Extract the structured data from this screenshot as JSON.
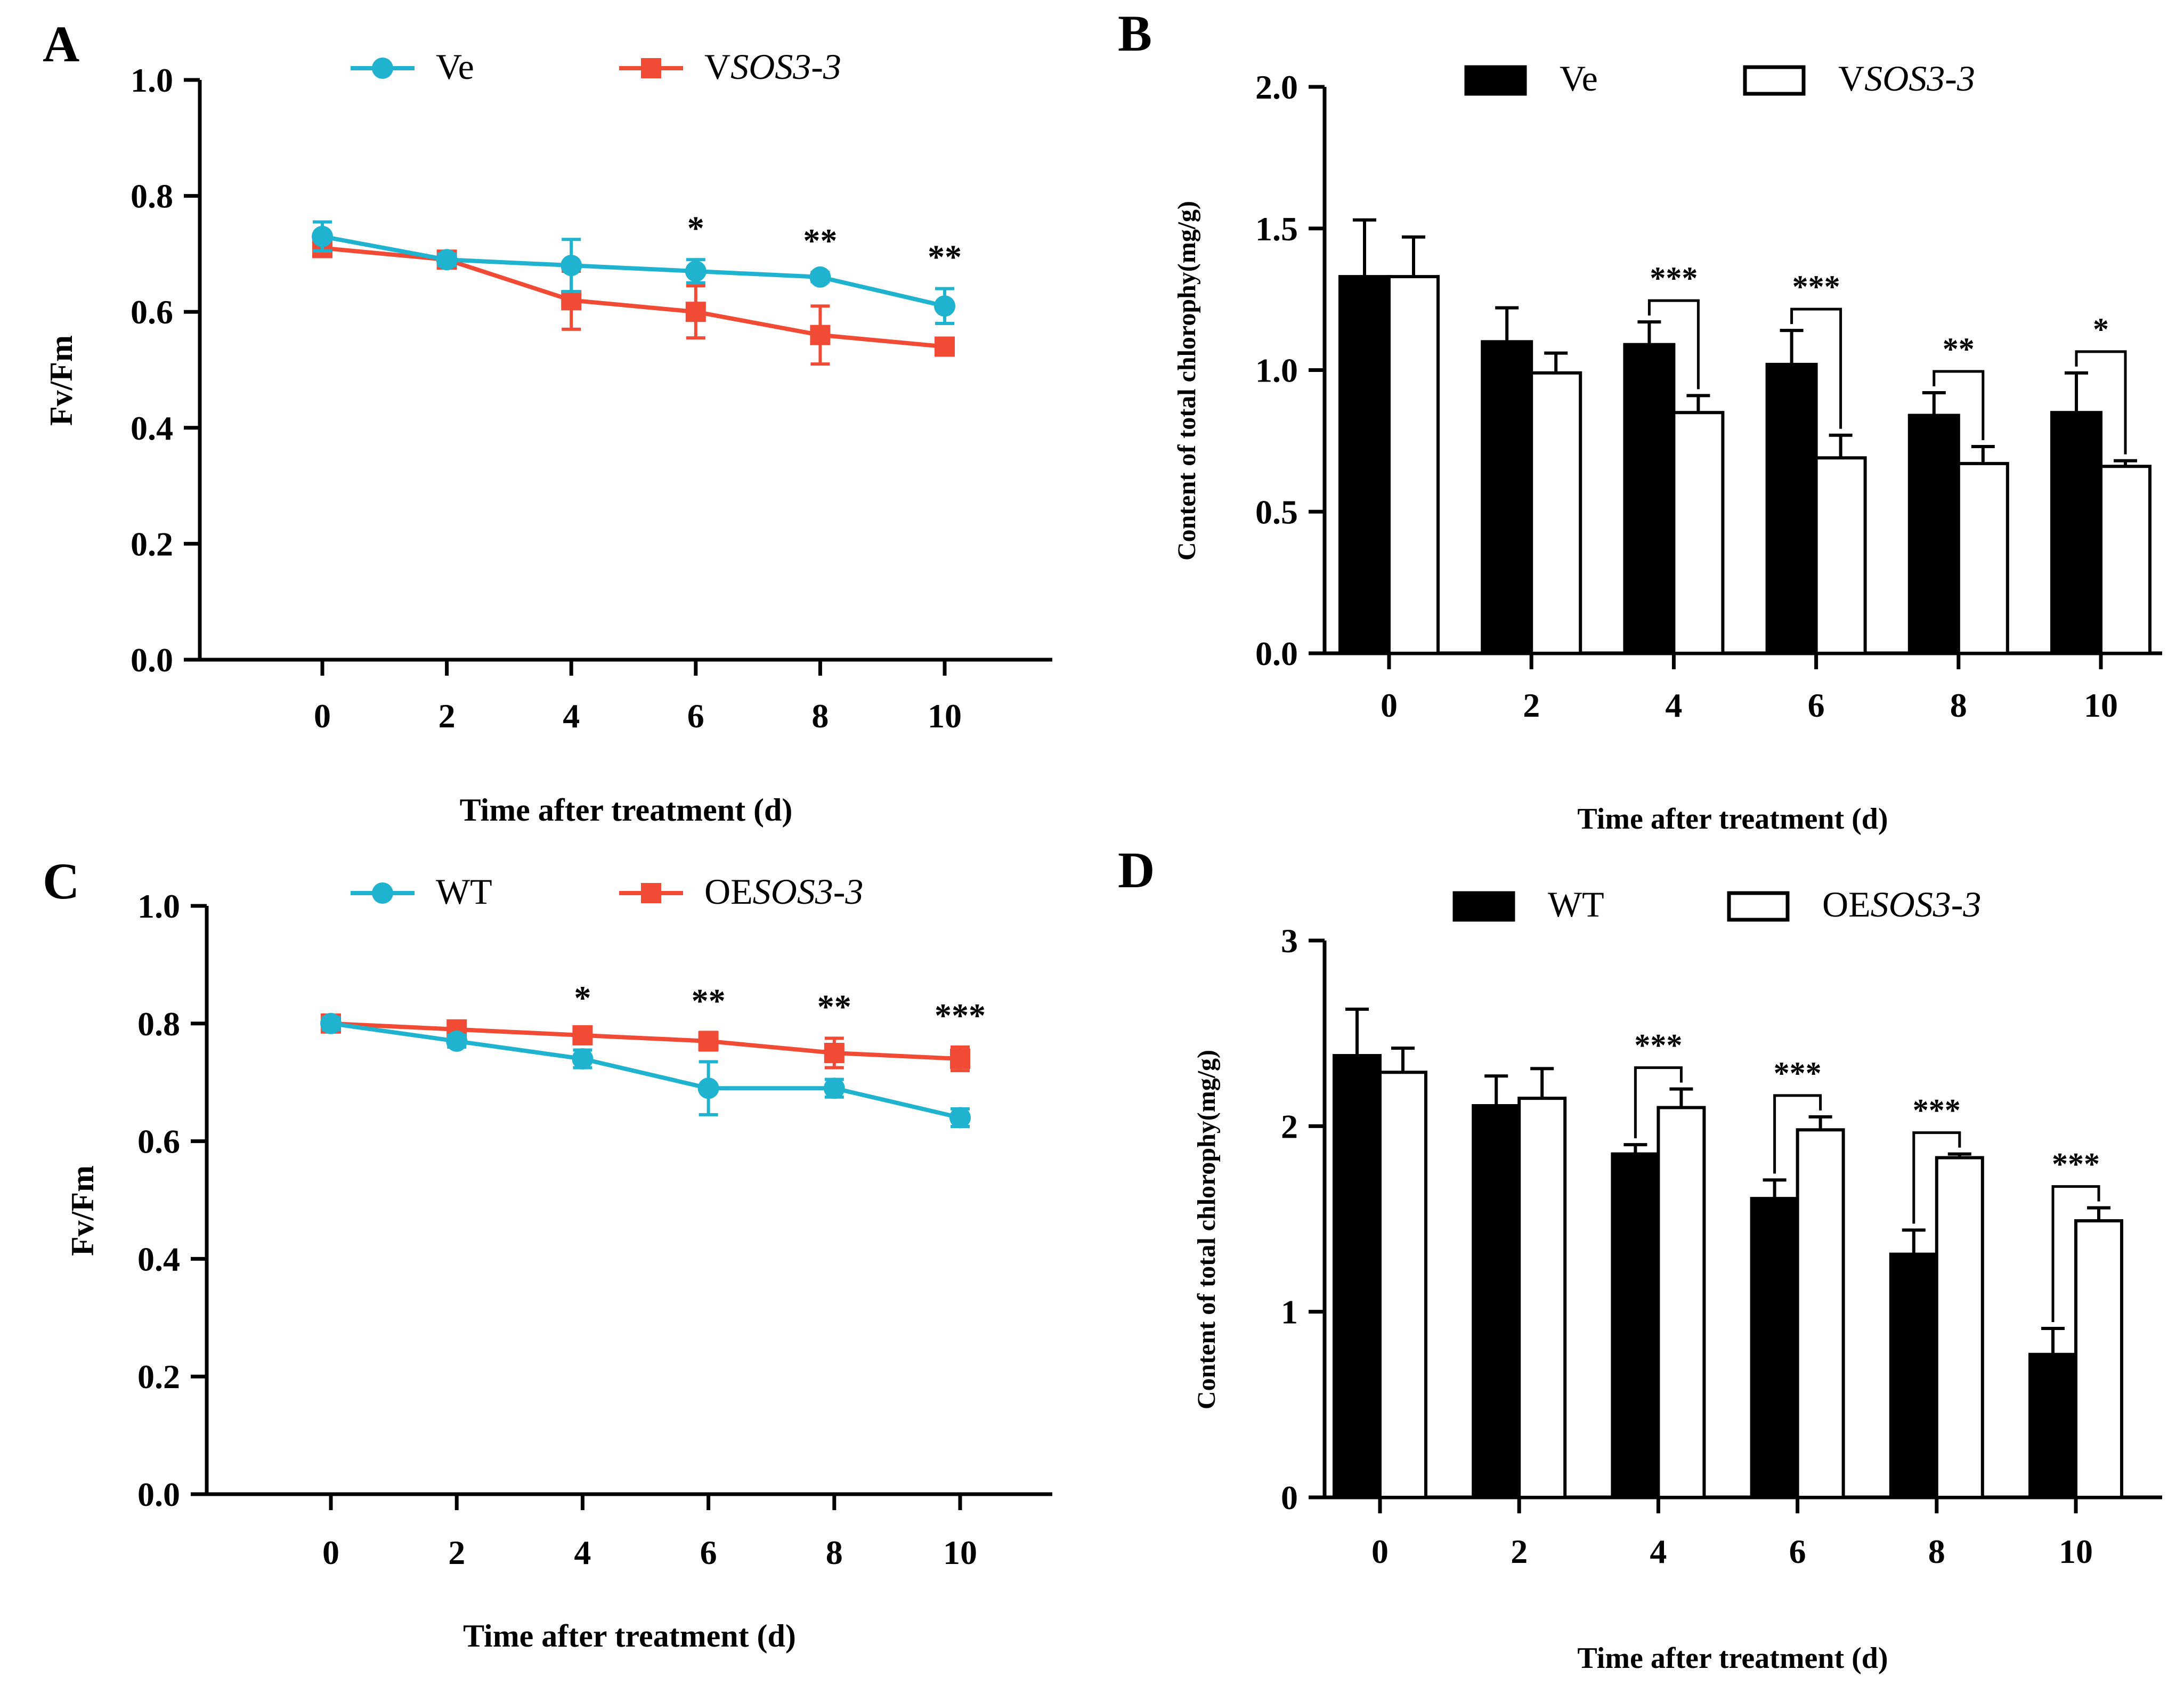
{
  "colors": {
    "ve": "#1fb3cf",
    "vsos": "#f14a35",
    "black": "#000000",
    "white": "#ffffff"
  },
  "chart_data": [
    {
      "id": "A",
      "panel_label": "A",
      "type": "line",
      "x": [
        0,
        2,
        4,
        6,
        8,
        10
      ],
      "xticks": [
        "0",
        "2",
        "4",
        "6",
        "8",
        "10"
      ],
      "yticks": [
        "0.0",
        "0.2",
        "0.4",
        "0.6",
        "0.8",
        "1.0"
      ],
      "ylim": [
        0,
        1.0
      ],
      "xlabel": "Time after treatment (d)",
      "ylabel": "Fv/Fm",
      "legend_position": "top",
      "series": [
        {
          "name": "Ve",
          "legend_parts": [
            "Ve",
            ""
          ],
          "color_key": "ve",
          "marker": "circle",
          "values": [
            0.73,
            0.69,
            0.68,
            0.67,
            0.66,
            0.61
          ],
          "errors": [
            0.025,
            0.01,
            0.045,
            0.02,
            0.008,
            0.03
          ]
        },
        {
          "name": "VSOS3-3",
          "legend_parts": [
            "V",
            "SOS3-3"
          ],
          "color_key": "vsos",
          "marker": "square",
          "values": [
            0.71,
            0.69,
            0.62,
            0.6,
            0.56,
            0.54
          ],
          "errors": [
            0.01,
            0.01,
            0.05,
            0.045,
            0.05,
            0.008
          ]
        }
      ],
      "significance": [
        {
          "x": 6,
          "label": "*"
        },
        {
          "x": 8,
          "label": "**"
        },
        {
          "x": 10,
          "label": "**"
        }
      ]
    },
    {
      "id": "B",
      "panel_label": "B",
      "type": "bar",
      "categories": [
        "0",
        "2",
        "4",
        "6",
        "8",
        "10"
      ],
      "yticks": [
        "0.0",
        "0.5",
        "1.0",
        "1.5",
        "2.0"
      ],
      "ylim": [
        0,
        2.0
      ],
      "xlabel": "Time after treatment (d)",
      "ylabel": "Content of total chlorophy(mg/g)",
      "legend_position": "top",
      "series": [
        {
          "name": "Ve",
          "legend_parts": [
            "Ve",
            ""
          ],
          "fill": "black",
          "values": [
            1.33,
            1.1,
            1.09,
            1.02,
            0.84,
            0.85
          ],
          "errors": [
            0.2,
            0.12,
            0.08,
            0.12,
            0.08,
            0.14
          ]
        },
        {
          "name": "VSOS3-3",
          "legend_parts": [
            "V",
            "SOS3-3"
          ],
          "fill": "white",
          "values": [
            1.33,
            0.99,
            0.85,
            0.69,
            0.67,
            0.66
          ],
          "errors": [
            0.14,
            0.07,
            0.06,
            0.08,
            0.06,
            0.02
          ]
        }
      ],
      "significance": [
        {
          "index": 2,
          "label": "***"
        },
        {
          "index": 3,
          "label": "***"
        },
        {
          "index": 4,
          "label": "**"
        },
        {
          "index": 5,
          "label": "*"
        }
      ]
    },
    {
      "id": "C",
      "panel_label": "C",
      "type": "line",
      "x": [
        0,
        2,
        4,
        6,
        8,
        10
      ],
      "xticks": [
        "0",
        "2",
        "4",
        "6",
        "8",
        "10"
      ],
      "yticks": [
        "0.0",
        "0.2",
        "0.4",
        "0.6",
        "0.8",
        "1.0"
      ],
      "ylim": [
        0,
        1.0
      ],
      "xlabel": "Time after treatment (d)",
      "ylabel": "Fv/Fm",
      "legend_position": "top",
      "series": [
        {
          "name": "WT",
          "legend_parts": [
            "WT",
            ""
          ],
          "color_key": "ve",
          "marker": "circle",
          "values": [
            0.8,
            0.77,
            0.74,
            0.69,
            0.69,
            0.64
          ],
          "errors": [
            0.01,
            0.01,
            0.015,
            0.045,
            0.015,
            0.015
          ]
        },
        {
          "name": "OESOS3-3",
          "legend_parts": [
            "OE",
            "SOS3-3"
          ],
          "color_key": "vsos",
          "marker": "square",
          "values": [
            0.8,
            0.79,
            0.78,
            0.77,
            0.75,
            0.74
          ],
          "errors": [
            0.008,
            0.008,
            0.01,
            0.015,
            0.025,
            0.02
          ]
        }
      ],
      "significance": [
        {
          "x": 4,
          "label": "*"
        },
        {
          "x": 6,
          "label": "**"
        },
        {
          "x": 8,
          "label": "**"
        },
        {
          "x": 10,
          "label": "***"
        }
      ]
    },
    {
      "id": "D",
      "panel_label": "D",
      "type": "bar",
      "categories": [
        "0",
        "2",
        "4",
        "6",
        "8",
        "10"
      ],
      "yticks": [
        "0",
        "1",
        "2",
        "3"
      ],
      "ylim": [
        0,
        3
      ],
      "xlabel": "Time after treatment (d)",
      "ylabel": "Content of total chlorophy(mg/g)",
      "legend_position": "top",
      "series": [
        {
          "name": "WT",
          "legend_parts": [
            "WT",
            ""
          ],
          "fill": "black",
          "values": [
            2.38,
            2.11,
            1.85,
            1.61,
            1.31,
            0.77
          ],
          "errors": [
            0.25,
            0.16,
            0.05,
            0.1,
            0.13,
            0.14
          ]
        },
        {
          "name": "OESOS3-3",
          "legend_parts": [
            "OE",
            "SOS3-3"
          ],
          "fill": "white",
          "values": [
            2.29,
            2.15,
            2.1,
            1.98,
            1.83,
            1.49
          ],
          "errors": [
            0.13,
            0.16,
            0.1,
            0.07,
            0.02,
            0.07
          ]
        }
      ],
      "significance": [
        {
          "index": 2,
          "label": "***"
        },
        {
          "index": 3,
          "label": "***"
        },
        {
          "index": 4,
          "label": "***"
        },
        {
          "index": 5,
          "label": "***"
        }
      ]
    }
  ]
}
